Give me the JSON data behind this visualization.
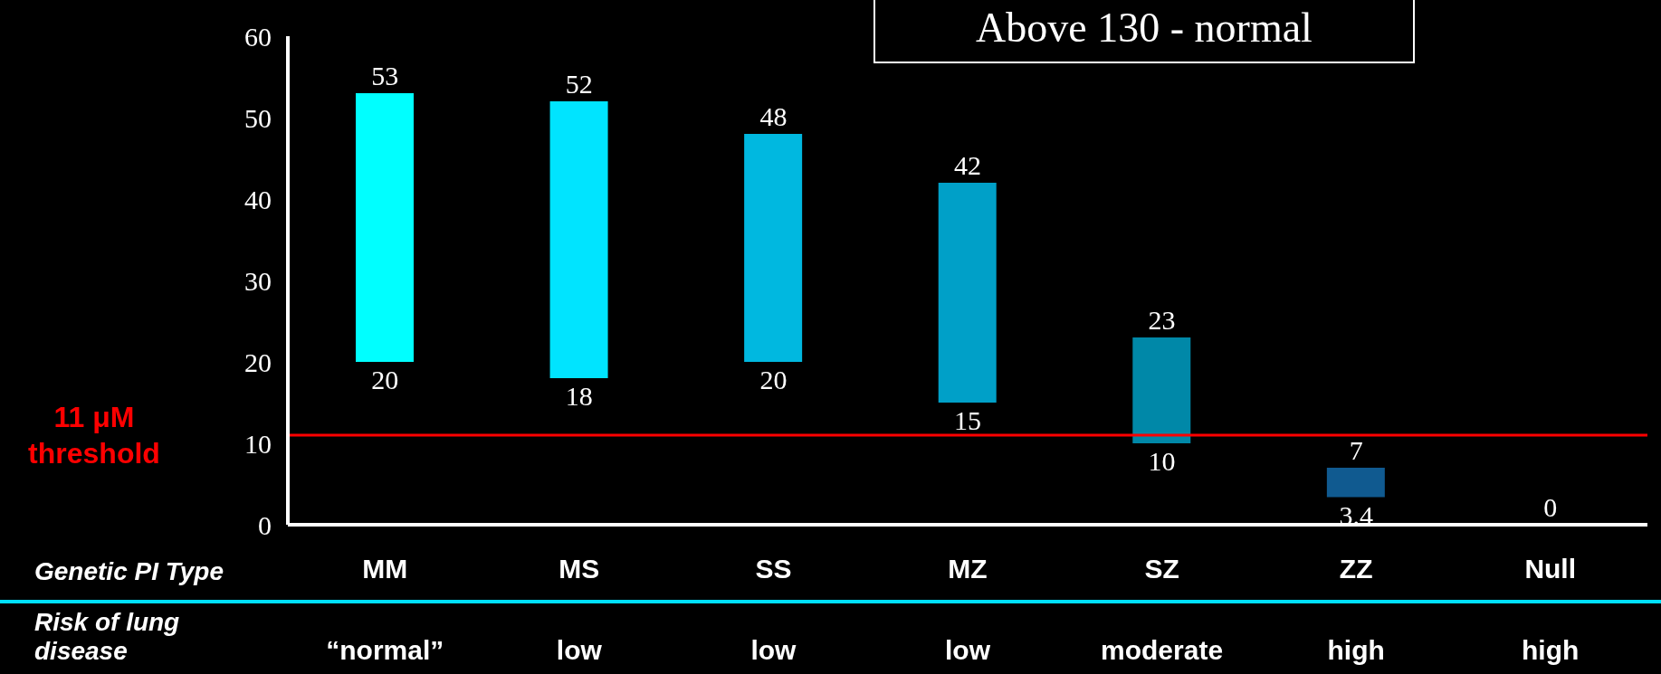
{
  "chart_data": {
    "type": "bar",
    "categories": [
      "MM",
      "MS",
      "SS",
      "MZ",
      "SZ",
      "ZZ",
      "Null"
    ],
    "base": [
      20,
      18,
      20,
      15,
      10,
      3.4,
      null
    ],
    "values": [
      33,
      34,
      28,
      27,
      13,
      3.6,
      0
    ],
    "colors": [
      "#00ffff",
      "#00e4ff",
      "#00b8e0",
      "#00a0c8",
      "#0088a8",
      "#105a90",
      "#105a90"
    ],
    "xlabel": "Genetic PI Type",
    "ylim": [
      0,
      60
    ],
    "yticks": [
      0,
      10,
      20,
      30,
      40,
      50,
      60
    ],
    "grid": false,
    "ref_lines": [
      {
        "axis": "y",
        "value": 11,
        "label": "11 μM threshold",
        "color": "#ff0000"
      }
    ],
    "annotations": [
      "Above 130 - normal",
      {
        "text": "53",
        "x": "MM",
        "y": 53
      },
      {
        "text": "20",
        "x": "MM",
        "y": 20
      },
      {
        "text": "52",
        "x": "MS",
        "y": 52
      },
      {
        "text": "18",
        "x": "MS",
        "y": 18
      },
      {
        "text": "48",
        "x": "SS",
        "y": 48
      },
      {
        "text": "20",
        "x": "SS",
        "y": 20
      },
      {
        "text": "42",
        "x": "MZ",
        "y": 42
      },
      {
        "text": "15",
        "x": "MZ",
        "y": 15
      },
      {
        "text": "23",
        "x": "SZ",
        "y": 23
      },
      {
        "text": "10",
        "x": "SZ",
        "y": 10
      },
      {
        "text": "7",
        "x": "ZZ",
        "y": 7
      },
      {
        "text": "3.4",
        "x": "ZZ",
        "y": 3.4
      },
      {
        "text": "0",
        "x": "Null",
        "y": 0
      },
      "Risk of lung disease",
      "“normal”",
      "low",
      "low",
      "low",
      "moderate",
      "high",
      "high"
    ]
  }
}
